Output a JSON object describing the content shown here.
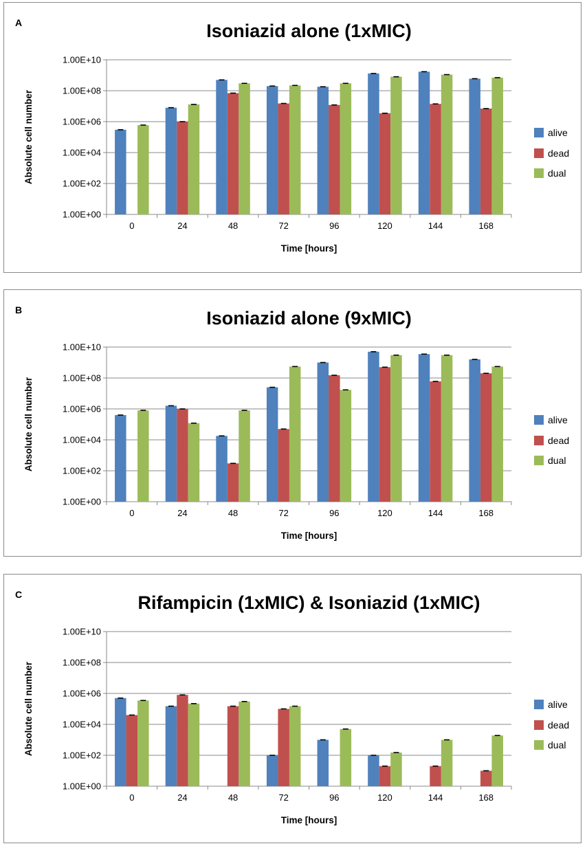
{
  "chart_data": [
    {
      "type": "bar",
      "panel_label": "A",
      "title": "Isoniazid alone (1xMIC)",
      "xlabel": "Time [hours]",
      "ylabel": "Absolute cell number",
      "yscale": "log",
      "ylim": [
        1,
        10000000000
      ],
      "ytick_labels": [
        "1.00E+00",
        "1.00E+02",
        "1.00E+04",
        "1.00E+06",
        "1.00E+08",
        "1.00E+10"
      ],
      "categories": [
        "0",
        "24",
        "48",
        "72",
        "96",
        "120",
        "144",
        "168"
      ],
      "legend_position": "right",
      "series": [
        {
          "name": "alive",
          "color": "#4f81bd",
          "values": [
            300000,
            8000000,
            500000000,
            200000000,
            180000000,
            1300000000,
            1700000000,
            600000000
          ]
        },
        {
          "name": "dead",
          "color": "#c0504d",
          "values": [
            null,
            1000000,
            70000000,
            15000000,
            12000000,
            3500000,
            14000000,
            7000000
          ]
        },
        {
          "name": "dual",
          "color": "#9bbb59",
          "values": [
            600000,
            13000000,
            300000000,
            220000000,
            300000000,
            800000000,
            1100000000,
            700000000
          ]
        }
      ]
    },
    {
      "type": "bar",
      "panel_label": "B",
      "title": "Isoniazid alone (9xMIC)",
      "xlabel": "Time [hours]",
      "ylabel": "Absolute cell number",
      "yscale": "log",
      "ylim": [
        1,
        10000000000
      ],
      "ytick_labels": [
        "1.00E+00",
        "1.00E+02",
        "1.00E+04",
        "1.00E+06",
        "1.00E+08",
        "1.00E+10"
      ],
      "categories": [
        "0",
        "24",
        "48",
        "72",
        "96",
        "120",
        "144",
        "168"
      ],
      "legend_position": "right",
      "series": [
        {
          "name": "alive",
          "color": "#4f81bd",
          "values": [
            400000,
            1600000,
            18000,
            25000000,
            1000000000,
            5000000000,
            3500000000,
            1600000000
          ]
        },
        {
          "name": "dead",
          "color": "#c0504d",
          "values": [
            null,
            1000000,
            300,
            50000,
            150000000,
            500000000,
            60000000,
            200000000
          ]
        },
        {
          "name": "dual",
          "color": "#9bbb59",
          "values": [
            800000,
            120000,
            800000,
            550000000,
            17000000,
            3000000000,
            3000000000,
            550000000
          ]
        }
      ]
    },
    {
      "type": "bar",
      "panel_label": "C",
      "title": "Rifampicin (1xMIC) & Isoniazid (1xMIC)",
      "xlabel": "Time [hours]",
      "ylabel": "Absolute cell number",
      "yscale": "log",
      "ylim": [
        1,
        10000000000
      ],
      "ytick_labels": [
        "1.00E+00",
        "1.00E+02",
        "1.00E+04",
        "1.00E+06",
        "1.00E+08",
        "1.00E+10"
      ],
      "categories": [
        "0",
        "24",
        "48",
        "72",
        "96",
        "120",
        "144",
        "168"
      ],
      "legend_position": "right",
      "series": [
        {
          "name": "alive",
          "color": "#4f81bd",
          "values": [
            500000,
            150000,
            null,
            100,
            1000,
            100,
            null,
            null
          ]
        },
        {
          "name": "dead",
          "color": "#c0504d",
          "values": [
            40000,
            800000,
            150000,
            100000,
            null,
            20,
            20,
            10
          ]
        },
        {
          "name": "dual",
          "color": "#9bbb59",
          "values": [
            350000,
            220000,
            300000,
            150000,
            5000,
            150,
            1000,
            1900
          ]
        }
      ]
    }
  ]
}
